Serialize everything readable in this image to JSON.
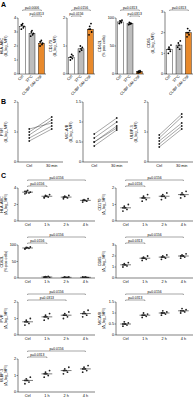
{
  "panel_labels": [
    "A",
    "B",
    "C"
  ],
  "chart_data": [
    {
      "type": "bar",
      "ylabel": "HLA-ABC (Δ_log_MFI)",
      "categories": [
        "Ctrl",
        "37°C",
        "CL/BF GM-CSF"
      ],
      "colors": [
        "#ffffff",
        "#bdbdbd",
        "#e8892b"
      ],
      "ylim": [
        0,
        4
      ],
      "yticks": [
        0,
        1,
        2,
        3,
        4
      ],
      "values": [
        3.4,
        2.9,
        2.2
      ],
      "points": [
        [
          3.2,
          3.5,
          3.6,
          3.3,
          3.4,
          3.5
        ],
        [
          2.7,
          3.0,
          3.1,
          2.8,
          2.9
        ],
        [
          2.0,
          2.3,
          2.4,
          2.1,
          2.2,
          2.3
        ]
      ],
      "annotations": [
        {
          "text": "p=0.0313",
          "from": 1,
          "to": 2
        },
        {
          "text": "p=0.0006",
          "from": 0,
          "to": 2
        }
      ]
    },
    {
      "type": "bar",
      "ylabel": "CD170 (Δ_log_MFI)",
      "categories": [
        "Ctrl",
        "37°C",
        "CL/BF GM-CSF"
      ],
      "colors": [
        "#ffffff",
        "#bdbdbd",
        "#e8892b"
      ],
      "ylim": [
        0,
        2
      ],
      "yticks": [
        0,
        1,
        2
      ],
      "values": [
        0.6,
        0.9,
        1.6
      ],
      "points": [
        [
          0.5,
          0.6,
          0.7,
          0.55,
          0.65,
          0.6
        ],
        [
          0.8,
          1.0,
          0.9,
          0.85,
          0.95
        ],
        [
          1.4,
          1.7,
          1.6,
          1.8,
          1.5,
          1.6
        ]
      ],
      "annotations": [
        {
          "text": "p=0.0156",
          "from": 0,
          "to": 1
        },
        {
          "text": "p=0.0156",
          "from": 0,
          "to": 2
        }
      ]
    },
    {
      "type": "bar",
      "ylabel": "CD62L (% pos cells)",
      "categories": [
        "Ctrl",
        "37°C",
        "CL/BF GM-CSF"
      ],
      "colors": [
        "#ffffff",
        "#bdbdbd",
        "#e8892b"
      ],
      "ylim": [
        0,
        100
      ],
      "yticks": [
        0,
        50,
        100
      ],
      "values": [
        93,
        90,
        4
      ],
      "points": [
        [
          90,
          95,
          94,
          92,
          96,
          91
        ],
        [
          88,
          92,
          89,
          91,
          90
        ],
        [
          2,
          5,
          3,
          6,
          4,
          4
        ]
      ],
      "annotations": [
        {
          "text": "p=0.0313",
          "from": 1,
          "to": 2
        },
        {
          "text": "p=0.0313",
          "from": 0,
          "to": 2
        }
      ]
    },
    {
      "type": "bar",
      "ylabel": "CD85 (Δ_log_MFI)",
      "categories": [
        "Ctrl",
        "37°C",
        "CL/BF GM-CSF"
      ],
      "colors": [
        "#ffffff",
        "#bdbdbd",
        "#e8892b"
      ],
      "ylim": [
        0,
        3
      ],
      "yticks": [
        0,
        1,
        2,
        3
      ],
      "values": [
        1.2,
        1.4,
        2.0
      ],
      "points": [
        [
          1.0,
          1.3,
          1.2,
          1.1,
          1.4,
          1.2
        ],
        [
          1.3,
          1.5,
          1.4,
          1.2,
          1.6
        ],
        [
          1.8,
          2.2,
          2.0,
          1.9,
          2.1,
          2.0
        ]
      ],
      "annotations": [
        {
          "text": "p=0.0313",
          "from": 0,
          "to": 2
        }
      ]
    },
    {
      "type": "paired",
      "ylabel": "PVR (Δ_log_MFI)",
      "categories": [
        "Ctrl",
        "30 min"
      ],
      "color": "#222222",
      "ylim": [
        0,
        2
      ],
      "yticks": [
        0,
        1,
        2
      ],
      "points": [
        [
          0.8,
          1.0,
          1.1,
          0.9,
          0.7
        ],
        [
          1.2,
          1.5,
          1.3,
          1.4,
          1.1
        ]
      ]
    },
    {
      "type": "paired",
      "ylabel": "MIC-A/B (Δ_log_MFI)",
      "categories": [
        "Ctrl",
        "30 min"
      ],
      "color": "#222222",
      "ylim": [
        0,
        1.5
      ],
      "yticks": [
        0,
        0.5,
        1,
        1.5
      ],
      "points": [
        [
          0.4,
          0.6,
          0.5,
          0.7,
          0.5
        ],
        [
          0.8,
          1.0,
          0.9,
          1.1,
          0.85
        ]
      ]
    },
    {
      "type": "paired",
      "ylabel": "ULBP-3 (Δ_log_MFI)",
      "categories": [
        "Ctrl",
        "30 min"
      ],
      "color": "#222222",
      "ylim": [
        0,
        2
      ],
      "yticks": [
        0,
        1,
        2
      ],
      "points": [
        [
          0.6,
          0.8,
          0.7,
          0.9,
          0.5
        ],
        [
          1.2,
          1.5,
          1.3,
          1.6,
          1.1
        ]
      ]
    },
    {
      "type": "dot",
      "ylabel": "HLA-ABC (Δ_log_MFI)",
      "categories": [
        "Ctrl",
        "1 h",
        "2 h",
        "4 h"
      ],
      "color": "#222222",
      "ylim": [
        0,
        4
      ],
      "yticks": [
        0,
        2,
        4
      ],
      "values": [
        3.5,
        3.0,
        2.9,
        2.5
      ],
      "points": [
        [
          3.3,
          3.6,
          3.7,
          3.4,
          3.5,
          3.6,
          3.4
        ],
        [
          2.8,
          3.1,
          3.0,
          2.9,
          3.2,
          2.9,
          3.0
        ],
        [
          2.7,
          3.0,
          2.9,
          2.8,
          3.1,
          2.9,
          2.9
        ],
        [
          2.3,
          2.6,
          2.5,
          2.4,
          2.7,
          2.5,
          2.5
        ]
      ],
      "annotations": [
        {
          "text": "p=0.0156",
          "from": 0,
          "to": 1
        },
        {
          "text": "p=0.0156",
          "from": 0,
          "to": 3
        }
      ]
    },
    {
      "type": "dot",
      "ylabel": "CD170 (Δ_log_MFI)",
      "categories": [
        "Ctrl",
        "1 h",
        "2 h",
        "4 h"
      ],
      "color": "#222222",
      "ylim": [
        0,
        2
      ],
      "yticks": [
        0,
        1,
        2
      ],
      "values": [
        0.8,
        1.4,
        1.5,
        1.6
      ],
      "points": [
        [
          0.6,
          0.9,
          0.8,
          0.7,
          1.0,
          0.8,
          0.8
        ],
        [
          1.2,
          1.5,
          1.4,
          1.3,
          1.6,
          1.4,
          1.4
        ],
        [
          1.3,
          1.6,
          1.5,
          1.4,
          1.7,
          1.5,
          1.5
        ],
        [
          1.4,
          1.7,
          1.6,
          1.5,
          1.8,
          1.6,
          1.6
        ]
      ],
      "annotations": [
        {
          "text": "p=0.0156",
          "from": 0,
          "to": 1
        },
        {
          "text": "p=0.0156",
          "from": 0,
          "to": 3
        }
      ]
    },
    {
      "type": "dot",
      "ylabel": "CD62L (% pos cells)",
      "categories": [
        "Ctrl",
        "1 h",
        "2 h",
        "4 h"
      ],
      "color": "#222222",
      "ylim": [
        0,
        100
      ],
      "yticks": [
        0,
        50,
        100
      ],
      "values": [
        91,
        3,
        2,
        2
      ],
      "points": [
        [
          88,
          93,
          92,
          90,
          94,
          89,
          91
        ],
        [
          1,
          4,
          3,
          5,
          2,
          3,
          3
        ],
        [
          1,
          3,
          2,
          2,
          3,
          1,
          2
        ],
        [
          1,
          2,
          3,
          2,
          1,
          3,
          2
        ]
      ],
      "annotations": [
        {
          "text": "p=0.0156",
          "from": 0,
          "to": 1
        },
        {
          "text": "p=0.0156",
          "from": 0,
          "to": 3
        }
      ]
    },
    {
      "type": "dot",
      "ylabel": "CD85 (Δ_log_MFI)",
      "categories": [
        "Ctrl",
        "1 h",
        "2 h",
        "4 h"
      ],
      "color": "#222222",
      "ylim": [
        0,
        3
      ],
      "yticks": [
        0,
        1,
        2,
        3
      ],
      "values": [
        1.2,
        1.8,
        1.9,
        2.0
      ],
      "points": [
        [
          1.0,
          1.3,
          1.2,
          1.1,
          1.4,
          1.2,
          1.2
        ],
        [
          1.6,
          1.9,
          1.8,
          1.7,
          2.0,
          1.8,
          1.8
        ],
        [
          1.7,
          2.0,
          1.9,
          1.8,
          2.1,
          1.9,
          1.9
        ],
        [
          1.8,
          2.1,
          2.0,
          1.9,
          2.2,
          2.0,
          2.0
        ]
      ],
      "annotations": [
        {
          "text": "p=0.0313",
          "from": 0,
          "to": 1
        },
        {
          "text": "p=0.0156",
          "from": 0,
          "to": 3
        }
      ]
    },
    {
      "type": "dot",
      "ylabel": "PVR (Δ_log_MFI)",
      "categories": [
        "Ctrl",
        "1 h",
        "2 h",
        "4 h"
      ],
      "color": "#222222",
      "ylim": [
        0,
        2
      ],
      "yticks": [
        0,
        1,
        2
      ],
      "values": [
        0.8,
        1.1,
        1.2,
        1.3
      ],
      "points": [
        [
          0.6,
          0.9,
          0.8,
          0.7,
          1.0,
          0.8,
          0.8
        ],
        [
          0.9,
          1.2,
          1.1,
          1.0,
          1.3,
          1.1,
          1.1
        ],
        [
          1.0,
          1.3,
          1.2,
          1.1,
          1.4,
          1.2,
          1.2
        ],
        [
          1.1,
          1.4,
          1.3,
          1.2,
          1.5,
          1.3,
          1.3
        ]
      ],
      "annotations": [
        {
          "text": "p=0.0313",
          "from": 0,
          "to": 2
        },
        {
          "text": "p=0.0156",
          "from": 0,
          "to": 3
        }
      ]
    },
    {
      "type": "dot",
      "ylabel": "MICA/B (Δ_log_MFI)",
      "categories": [
        "Ctrl",
        "1 h",
        "2 h",
        "4 h"
      ],
      "color": "#222222",
      "ylim": [
        0,
        1.5
      ],
      "yticks": [
        0,
        0.5,
        1,
        1.5
      ],
      "values": [
        0.5,
        0.9,
        1.0,
        1.1
      ],
      "points": [
        [
          0.4,
          0.6,
          0.5,
          0.45,
          0.55,
          0.5,
          0.5
        ],
        [
          0.8,
          1.0,
          0.9,
          0.85,
          0.95,
          0.9,
          0.9
        ],
        [
          0.9,
          1.1,
          1.0,
          0.95,
          1.05,
          1.0,
          1.0
        ],
        [
          1.0,
          1.2,
          1.1,
          1.05,
          1.15,
          1.1,
          1.1
        ]
      ],
      "annotations": [
        {
          "text": "p=0.0313",
          "from": 0,
          "to": 1
        },
        {
          "text": "p=0.0156",
          "from": 0,
          "to": 3
        }
      ]
    },
    {
      "type": "dot",
      "ylabel": "ULBP-3 (Δ_log_MFI)",
      "categories": [
        "Ctrl",
        "1 h",
        "2 h",
        "4 h"
      ],
      "color": "#222222",
      "ylim": [
        0,
        2
      ],
      "yticks": [
        0,
        1,
        2
      ],
      "values": [
        0.7,
        1.1,
        1.3,
        1.4
      ],
      "points": [
        [
          0.5,
          0.8,
          0.7,
          0.6,
          0.9,
          0.7,
          0.7
        ],
        [
          0.9,
          1.2,
          1.1,
          1.0,
          1.3,
          1.1,
          1.1
        ],
        [
          1.1,
          1.4,
          1.3,
          1.2,
          1.5,
          1.3,
          1.3
        ],
        [
          1.2,
          1.5,
          1.4,
          1.3,
          1.6,
          1.4,
          1.4
        ]
      ],
      "annotations": [
        {
          "text": "p=0.0313",
          "from": 0,
          "to": 1
        },
        {
          "text": "p=0.0156",
          "from": 0,
          "to": 3
        }
      ]
    }
  ]
}
